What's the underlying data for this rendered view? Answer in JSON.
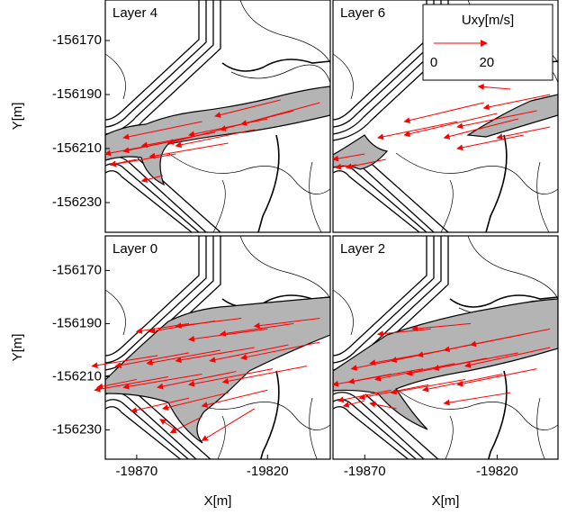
{
  "chart_data": [
    {
      "type": "quiver",
      "title": "Layer 4",
      "color": "#ff0000",
      "xlim": [
        -19882,
        -19796
      ],
      "ylim": [
        -156241,
        -156155
      ],
      "yticks": [
        -156170,
        -156190,
        -156210,
        -156230
      ],
      "y_label": "Y[m]",
      "x": [
        -19800,
        -19810,
        -19820,
        -19830,
        -19840,
        -19850,
        -19860,
        -19855,
        -19845,
        -19835,
        -19870,
        -19860,
        -19815,
        -19825
      ],
      "y": [
        -156193,
        -156196,
        -156199,
        -156201,
        -156204,
        -156206,
        -156208,
        -156212,
        -156200,
        -156208,
        -156214,
        -156220,
        -156192,
        -156203
      ],
      "u": [
        -30,
        -28,
        -30,
        -28,
        -28,
        -25,
        -22,
        -25,
        -30,
        -30,
        -10,
        -8,
        -25,
        -30
      ],
      "v": [
        -8,
        -7,
        -6,
        -7,
        -5,
        -5,
        -4,
        -4,
        -6,
        -5,
        -2,
        -2,
        -6,
        -6
      ]
    },
    {
      "type": "quiver",
      "title": "Layer 6",
      "color": "#ff0000",
      "xlim": [
        -19882,
        -19797
      ],
      "ylim": [
        -156241,
        -156155
      ],
      "key": {
        "label": "Uxy[m/s]",
        "value": 20,
        "ticks": [
          0,
          20
        ]
      },
      "x": [
        -19800,
        -19805,
        -19812,
        -19820,
        -19800,
        -19810,
        -19825,
        -19835,
        -19870,
        -19862,
        -19873,
        -19815
      ],
      "y": [
        -156190,
        -156196,
        -156199,
        -156197,
        -156202,
        -156205,
        -156193,
        -156200,
        -156212,
        -156214,
        -156216,
        -156188
      ],
      "u": [
        -25,
        -30,
        -28,
        -35,
        -20,
        -25,
        -30,
        -30,
        -12,
        -15,
        -8,
        -12
      ],
      "v": [
        -5,
        -6,
        -7,
        -8,
        -4,
        -5,
        -7,
        -6,
        -2,
        -3,
        -1,
        1
      ]
    },
    {
      "type": "quiver",
      "title": "Layer 0",
      "color": "#ff0000",
      "xlim": [
        -19882,
        -19796
      ],
      "ylim": [
        -156241,
        -156157
      ],
      "xticks": [
        -19870,
        -19820
      ],
      "yticks": [
        -156170,
        -156190,
        -156210,
        -156230
      ],
      "x_label": "X[m]",
      "y_label": "Y[m]",
      "x": [
        -19800,
        -19810,
        -19820,
        -19830,
        -19840,
        -19850,
        -19800,
        -19812,
        -19825,
        -19838,
        -19850,
        -19862,
        -19805,
        -19818,
        -19832,
        -19845,
        -19858,
        -19870,
        -19820,
        -19835,
        -19850,
        -19845,
        -19825,
        -19855
      ],
      "y": [
        -156188,
        -156190,
        -156192,
        -156188,
        -156189,
        -156190,
        -156197,
        -156198,
        -156199,
        -156200,
        -156201,
        -156202,
        -156206,
        -156207,
        -156208,
        -156209,
        -156210,
        -156211,
        -156215,
        -156216,
        -156218,
        -156225,
        -156222,
        -156230
      ],
      "u": [
        -25,
        -28,
        -30,
        -25,
        -25,
        -20,
        -30,
        -30,
        -30,
        -28,
        -28,
        -25,
        -32,
        -32,
        -30,
        -30,
        -28,
        -15,
        -25,
        -25,
        -22,
        -12,
        -20,
        -6
      ],
      "v": [
        -3,
        -4,
        -4,
        -3,
        -4,
        -3,
        -6,
        -6,
        -5,
        -5,
        -5,
        -4,
        -6,
        -6,
        -6,
        -5,
        -5,
        -3,
        -6,
        -6,
        -5,
        -6,
        -12,
        4
      ]
    },
    {
      "type": "quiver",
      "title": "Layer 2",
      "color": "#ff0000",
      "xlim": [
        -19882,
        -19797
      ],
      "ylim": [
        -156241,
        -156157
      ],
      "xticks": [
        -19870,
        -19820
      ],
      "x_label": "X[m]",
      "x": [
        -19800,
        -19810,
        -19820,
        -19830,
        -19840,
        -19850,
        -19800,
        -19812,
        -19824,
        -19836,
        -19848,
        -19860,
        -19805,
        -19818,
        -19832,
        -19846,
        -19860,
        -19830,
        -19845,
        -19815,
        -19858,
        -19870
      ],
      "y": [
        -156192,
        -156194,
        -156196,
        -156198,
        -156200,
        -156202,
        -156199,
        -156201,
        -156203,
        -156205,
        -156207,
        -156209,
        -156207,
        -156209,
        -156211,
        -156213,
        -156215,
        -156190,
        -156192,
        -156216,
        -156222,
        -156219
      ],
      "u": [
        -30,
        -30,
        -30,
        -30,
        -28,
        -25,
        -32,
        -32,
        -30,
        -30,
        -28,
        -22,
        -30,
        -30,
        -28,
        -26,
        -20,
        -22,
        -20,
        -25,
        -10,
        -8
      ],
      "v": [
        -6,
        -6,
        -6,
        -6,
        -5,
        -5,
        -7,
        -6,
        -6,
        -6,
        -5,
        -4,
        -6,
        -6,
        -5,
        -5,
        -4,
        -2,
        -2,
        -4,
        2,
        -2
      ]
    }
  ]
}
